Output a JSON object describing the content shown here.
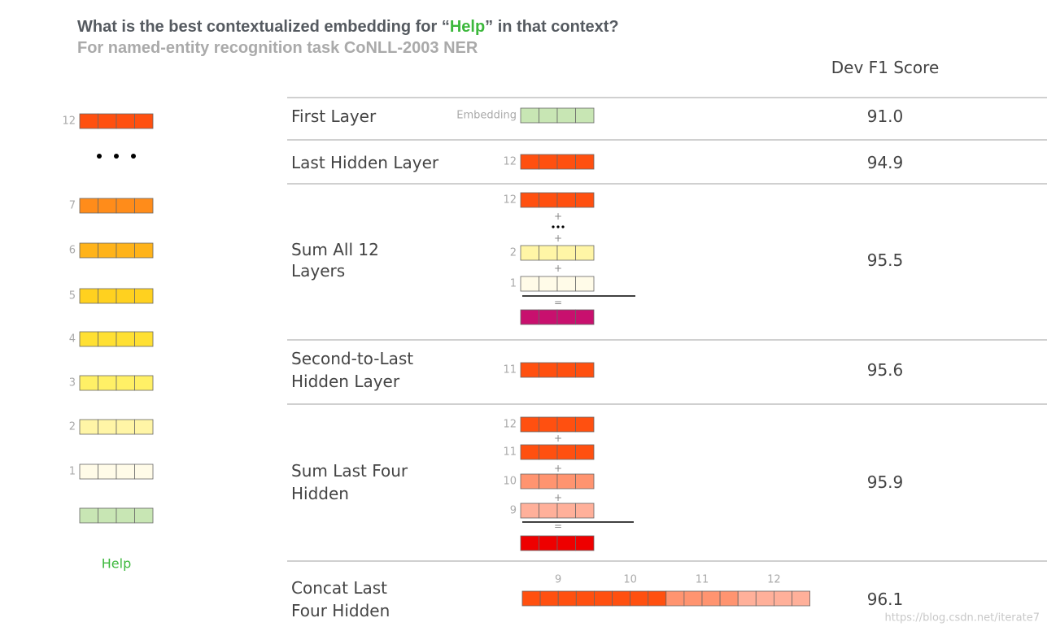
{
  "header": {
    "title_before": "What is the best contextualized embedding for “",
    "title_highlight": "Help",
    "title_after": "” in that context?",
    "subtitle": "For named-entity recognition task CoNLL-2003 NER"
  },
  "score_header": "Dev F1 Score",
  "stack": {
    "layers": [
      {
        "label": "12",
        "color": "#ff5010"
      },
      {
        "label": "7",
        "color": "#ff8c1a"
      },
      {
        "label": "6",
        "color": "#ffb31a"
      },
      {
        "label": "5",
        "color": "#ffd11f"
      },
      {
        "label": "4",
        "color": "#ffe033"
      },
      {
        "label": "3",
        "color": "#fff066"
      },
      {
        "label": "2",
        "color": "#fff5a6"
      },
      {
        "label": "1",
        "color": "#fffbe8"
      }
    ],
    "embedding_color": "#c8e6b4",
    "word": "Help"
  },
  "rows": [
    {
      "label": [
        "First Layer"
      ],
      "score": "91.0",
      "items": [
        {
          "label": "Embedding",
          "color": "#c8e6b4"
        }
      ]
    },
    {
      "label": [
        "Last Hidden Layer"
      ],
      "score": "94.9",
      "items": [
        {
          "label": "12",
          "color": "#ff5010"
        }
      ]
    },
    {
      "label": [
        "Sum All 12",
        "Layers"
      ],
      "score": "95.5",
      "items": [
        {
          "label": "12",
          "color": "#ff5010"
        },
        {
          "op": "+"
        },
        {
          "op": "+"
        },
        {
          "label": "2",
          "color": "#fff5a6"
        },
        {
          "op": "+"
        },
        {
          "label": "1",
          "color": "#fffbe8"
        },
        {
          "op": "="
        },
        {
          "color": "#c8106e"
        }
      ]
    },
    {
      "label": [
        "Second-to-Last",
        "Hidden Layer"
      ],
      "score": "95.6",
      "items": [
        {
          "label": "11",
          "color": "#ff5010"
        }
      ]
    },
    {
      "label": [
        "Sum Last Four",
        "Hidden"
      ],
      "score": "95.9",
      "items": [
        {
          "label": "12",
          "color": "#ff5010"
        },
        {
          "op": "+"
        },
        {
          "label": "11",
          "color": "#ff5010"
        },
        {
          "op": "+"
        },
        {
          "label": "10",
          "color": "#ff9470"
        },
        {
          "op": "+"
        },
        {
          "label": "9",
          "color": "#ffb09a"
        },
        {
          "op": "="
        },
        {
          "color": "#ee0000"
        }
      ]
    },
    {
      "label": [
        "Concat Last",
        "Four Hidden"
      ],
      "score": "96.1",
      "segments": [
        {
          "label": "9",
          "color": "#ff5010"
        },
        {
          "label": "10",
          "color": "#ff5010"
        },
        {
          "label": "11",
          "color": "#ff9470"
        },
        {
          "label": "12",
          "color": "#ffb09a"
        }
      ]
    }
  ],
  "watermark": "https://blog.csdn.net/iterate7"
}
